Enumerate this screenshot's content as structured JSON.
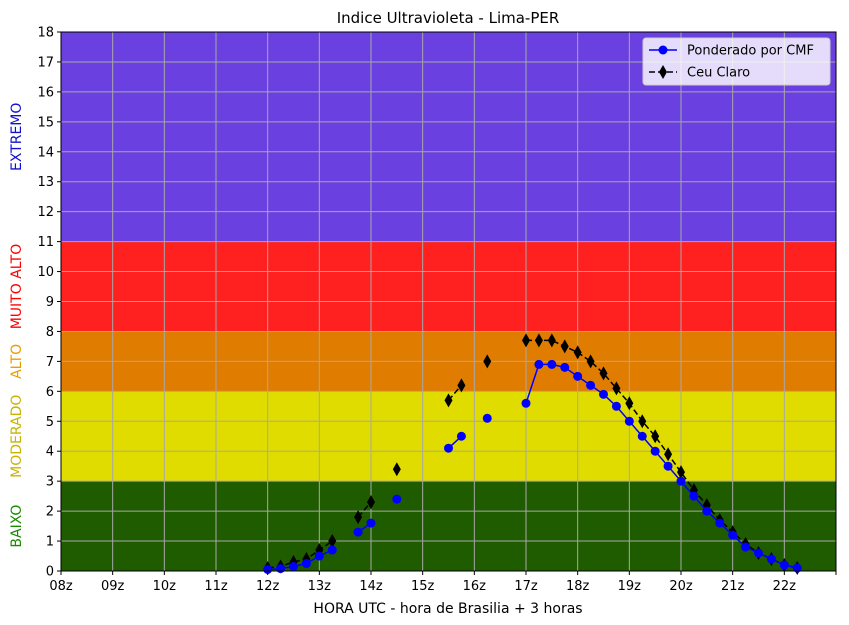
{
  "chart_data": {
    "type": "line",
    "title": "Indice Ultravioleta - Lima-PER",
    "xlabel": "HORA UTC - hora de Brasilia + 3 horas",
    "ylabel": "",
    "xlim": [
      8,
      23
    ],
    "ylim": [
      0,
      18
    ],
    "grid": true,
    "x_ticks": [
      {
        "value": 8,
        "label": "08z"
      },
      {
        "value": 9,
        "label": "09z"
      },
      {
        "value": 10,
        "label": "10z"
      },
      {
        "value": 11,
        "label": "11z"
      },
      {
        "value": 12,
        "label": "12z"
      },
      {
        "value": 13,
        "label": "13z"
      },
      {
        "value": 14,
        "label": "14z"
      },
      {
        "value": 15,
        "label": "15z"
      },
      {
        "value": 16,
        "label": "16z"
      },
      {
        "value": 17,
        "label": "17z"
      },
      {
        "value": 18,
        "label": "18z"
      },
      {
        "value": 19,
        "label": "19z"
      },
      {
        "value": 20,
        "label": "20z"
      },
      {
        "value": 21,
        "label": "21z"
      },
      {
        "value": 22,
        "label": "22z"
      },
      {
        "value": 23,
        "label": ""
      }
    ],
    "y_ticks": [
      0,
      1,
      2,
      3,
      4,
      5,
      6,
      7,
      8,
      9,
      10,
      11,
      12,
      13,
      14,
      15,
      16,
      17,
      18
    ],
    "bands": [
      {
        "label": "BAIXO",
        "from": 0,
        "to": 3,
        "fill": "#1f5c00",
        "label_color": "#1a8a00"
      },
      {
        "label": "MODERADO",
        "from": 3,
        "to": 6,
        "fill": "#e0dc00",
        "label_color": "#c8b400"
      },
      {
        "label": "ALTO",
        "from": 6,
        "to": 8,
        "fill": "#e07c00",
        "label_color": "#e8a000"
      },
      {
        "label": "MUITO ALTO",
        "from": 8,
        "to": 11,
        "fill": "#ff2020",
        "label_color": "#ff0000"
      },
      {
        "label": "EXTREMO",
        "from": 11,
        "to": 18,
        "fill": "#6a40e0",
        "label_color": "#1010d0"
      }
    ],
    "legend_position": "top-right",
    "series": [
      {
        "name": "Ponderado por CMF",
        "color": "#0000ff",
        "marker": "circle",
        "line_style": "solid",
        "segments": [
          [
            [
              12.0,
              0.05
            ],
            [
              12.25,
              0.08
            ],
            [
              12.5,
              0.15
            ],
            [
              12.75,
              0.25
            ],
            [
              13.0,
              0.5
            ],
            [
              13.25,
              0.7
            ]
          ],
          [
            [
              13.75,
              1.3
            ],
            [
              14.0,
              1.6
            ]
          ],
          [
            [
              14.5,
              2.4
            ]
          ],
          [
            [
              15.5,
              4.1
            ],
            [
              15.75,
              4.5
            ]
          ],
          [
            [
              16.25,
              5.1
            ]
          ],
          [
            [
              17.0,
              5.6
            ],
            [
              17.25,
              6.9
            ],
            [
              17.5,
              6.9
            ],
            [
              17.75,
              6.8
            ],
            [
              18.0,
              6.5
            ],
            [
              18.25,
              6.2
            ],
            [
              18.5,
              5.9
            ],
            [
              18.75,
              5.5
            ],
            [
              19.0,
              5.0
            ],
            [
              19.25,
              4.5
            ],
            [
              19.5,
              4.0
            ],
            [
              19.75,
              3.5
            ],
            [
              20.0,
              3.0
            ],
            [
              20.25,
              2.5
            ],
            [
              20.5,
              2.0
            ],
            [
              20.75,
              1.6
            ],
            [
              21.0,
              1.2
            ],
            [
              21.25,
              0.8
            ],
            [
              21.5,
              0.6
            ],
            [
              21.75,
              0.4
            ],
            [
              22.0,
              0.2
            ],
            [
              22.25,
              0.1
            ]
          ]
        ]
      },
      {
        "name": "Ceu Claro",
        "color": "#000000",
        "marker": "diamond",
        "line_style": "dashed",
        "segments": [
          [
            [
              12.0,
              0.1
            ],
            [
              12.25,
              0.15
            ],
            [
              12.5,
              0.3
            ],
            [
              12.75,
              0.4
            ],
            [
              13.0,
              0.7
            ],
            [
              13.25,
              1.0
            ]
          ],
          [
            [
              13.75,
              1.8
            ],
            [
              14.0,
              2.3
            ]
          ],
          [
            [
              14.5,
              3.4
            ]
          ],
          [
            [
              15.5,
              5.7
            ],
            [
              15.75,
              6.2
            ]
          ],
          [
            [
              16.25,
              7.0
            ]
          ],
          [
            [
              17.0,
              7.7
            ],
            [
              17.25,
              7.7
            ],
            [
              17.5,
              7.7
            ],
            [
              17.75,
              7.5
            ],
            [
              18.0,
              7.3
            ],
            [
              18.25,
              7.0
            ],
            [
              18.5,
              6.6
            ],
            [
              18.75,
              6.1
            ],
            [
              19.0,
              5.6
            ],
            [
              19.25,
              5.0
            ],
            [
              19.5,
              4.5
            ],
            [
              19.75,
              3.9
            ],
            [
              20.0,
              3.3
            ],
            [
              20.25,
              2.7
            ],
            [
              20.5,
              2.2
            ],
            [
              20.75,
              1.7
            ],
            [
              21.0,
              1.3
            ],
            [
              21.25,
              0.9
            ],
            [
              21.5,
              0.6
            ],
            [
              21.75,
              0.4
            ],
            [
              22.0,
              0.2
            ],
            [
              22.25,
              0.1
            ]
          ]
        ]
      }
    ]
  }
}
